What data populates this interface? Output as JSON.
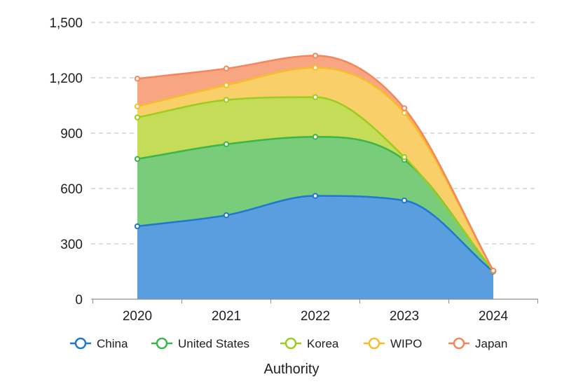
{
  "chart_data": {
    "type": "area",
    "stacked": true,
    "categories": [
      "2020",
      "2021",
      "2022",
      "2023",
      "2024"
    ],
    "series": [
      {
        "name": "China",
        "values": [
          395,
          455,
          560,
          535,
          150
        ],
        "color": "#1f77d0",
        "fill": "#5b9ee0"
      },
      {
        "name": "United States",
        "values": [
          365,
          385,
          320,
          220,
          2
        ],
        "color": "#3cb54a",
        "fill": "#79cc7a"
      },
      {
        "name": "Korea",
        "values": [
          225,
          240,
          215,
          15,
          1
        ],
        "color": "#9ccc1f",
        "fill": "#c4dc58"
      },
      {
        "name": "WIPO",
        "values": [
          60,
          80,
          160,
          240,
          1
        ],
        "color": "#f5bd2a",
        "fill": "#f9cf69"
      },
      {
        "name": "Japan",
        "values": [
          150,
          90,
          65,
          25,
          1
        ],
        "color": "#f5865b",
        "fill": "#f8a682"
      }
    ],
    "xlabel": "Authority",
    "ylabel": "",
    "ylim": [
      0,
      1500
    ],
    "yticks": [
      "0",
      "300",
      "600",
      "900",
      "1,200",
      "1,500"
    ],
    "ytick_values": [
      0,
      300,
      600,
      900,
      1200,
      1500
    ],
    "grid": true,
    "legend_position": "bottom"
  }
}
